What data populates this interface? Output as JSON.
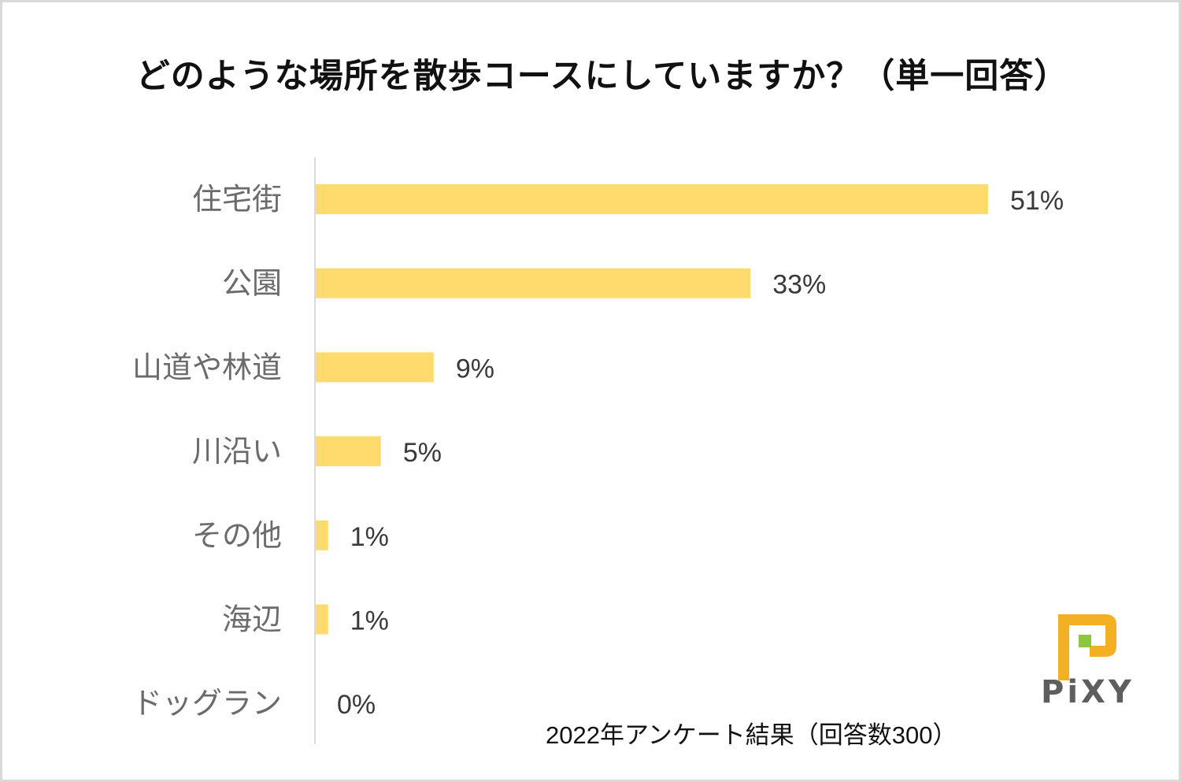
{
  "chart_data": {
    "type": "bar",
    "orientation": "horizontal",
    "title": "どのような場所を散歩コースにしていますか？（単一回答）",
    "categories": [
      "住宅街",
      "公園",
      "山道や林道",
      "川沿い",
      "その他",
      "海辺",
      "ドッグラン"
    ],
    "values": [
      51,
      33,
      9,
      5,
      1,
      1,
      0
    ],
    "value_labels": [
      "51%",
      "33%",
      "9%",
      "5%",
      "1%",
      "1%",
      "0%"
    ],
    "xlim": [
      0,
      55
    ],
    "unit": "%",
    "grid": false,
    "legend": "none",
    "bar_color": "#FFDB6E",
    "axis_color": "#d9d9d9"
  },
  "footer_note": "2022年アンケート結果（回答数300）",
  "logo": {
    "text": "PiXY",
    "orange": "#F4B024",
    "green": "#8DC63F"
  }
}
